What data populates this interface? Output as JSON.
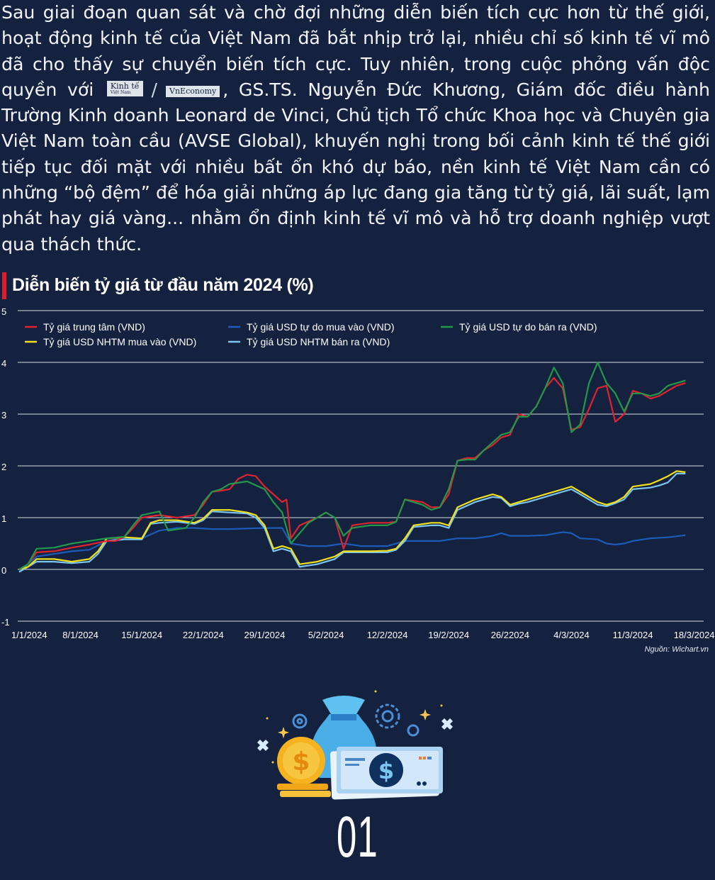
{
  "intro": {
    "part1": "Sau giai đoạn quan sát và chờ đợi những diễn biến tích cực hơn từ thế giới, hoạt động kinh tế của Việt Nam đã bắt nhịp trở lại, nhiều chỉ số kinh tế vĩ mô đã cho thấy sự chuyển biến tích cực. Tuy nhiên, trong cuộc phỏng vấn độc quyền với",
    "badge1_main": "Kinh tế",
    "badge1_sub": "Việt Nam",
    "separator": "/",
    "badge2": "VnEconomy",
    "part2": ", GS.TS. Nguyễn Đức Khương, Giám đốc điều hành Trường Kinh doanh Leonard de Vinci, Chủ tịch Tổ chức Khoa học và Chuyên gia Việt Nam toàn cầu (AVSE Global), khuyến nghị trong bối cảnh kinh tế thế giới tiếp tục đối mặt với nhiều bất ổn khó dự báo, nền kinh tế Việt Nam cần có những “bộ đệm” để hóa giải những áp lực đang gia tăng từ tỷ giá, lãi suất, lạm phát hay giá vàng... nhằm ổn định kinh tế vĩ mô và hỗ trợ doanh nghiệp vượt qua thách thức."
  },
  "source": "Nguồn: Wichart.vn",
  "section_number": "01",
  "chart_data": {
    "type": "line",
    "title": "Diễn biến tỷ giá từ đầu năm 2024 (%)",
    "xlabel": "",
    "ylabel": "",
    "ylim": [
      -1,
      5
    ],
    "yticks": [
      "5",
      "4",
      "3",
      "2",
      "1",
      "0",
      "-1"
    ],
    "grid": true,
    "legend_position": "top-left",
    "x_tick_labels": [
      "1/1/2024",
      "8/1/2024",
      "15/1/2024",
      "22/1/2024",
      "29/1/2024",
      "5/2/2024",
      "12/2/2024",
      "19/2/2024",
      "26/22024",
      "4/3/2024",
      "11/3/2024",
      "18/3/2024"
    ],
    "x_days": [
      0,
      7,
      14,
      21,
      28,
      35,
      42,
      49,
      56,
      63,
      70,
      77
    ],
    "x_range_days": [
      0,
      78
    ],
    "series": [
      {
        "name": "Tỷ giá trung tâm (VND)",
        "color": "#e0242f",
        "points": [
          [
            0,
            0
          ],
          [
            1,
            0.1
          ],
          [
            2,
            0.33
          ],
          [
            4,
            0.35
          ],
          [
            6,
            0.42
          ],
          [
            8,
            0.48
          ],
          [
            10,
            0.55
          ],
          [
            11,
            0.55
          ],
          [
            12,
            0.63
          ],
          [
            13,
            0.8
          ],
          [
            14,
            1.0
          ],
          [
            16,
            1.05
          ],
          [
            18,
            1.0
          ],
          [
            20,
            1.05
          ],
          [
            21,
            1.25
          ],
          [
            22,
            1.5
          ],
          [
            23,
            1.52
          ],
          [
            24,
            1.55
          ],
          [
            25,
            1.75
          ],
          [
            26,
            1.83
          ],
          [
            27,
            1.8
          ],
          [
            28,
            1.6
          ],
          [
            29,
            1.45
          ],
          [
            30,
            1.3
          ],
          [
            30.5,
            1.35
          ],
          [
            31,
            0.6
          ],
          [
            32,
            0.85
          ],
          [
            34,
            1.0
          ],
          [
            35,
            1.1
          ],
          [
            36,
            1.0
          ],
          [
            37,
            0.4
          ],
          [
            38,
            0.85
          ],
          [
            40,
            0.9
          ],
          [
            42,
            0.9
          ],
          [
            43,
            0.92
          ],
          [
            44,
            1.35
          ],
          [
            46,
            1.3
          ],
          [
            47,
            1.2
          ],
          [
            48,
            1.2
          ],
          [
            49,
            1.45
          ],
          [
            50,
            2.1
          ],
          [
            51,
            2.15
          ],
          [
            52,
            2.15
          ],
          [
            53,
            2.3
          ],
          [
            54,
            2.4
          ],
          [
            55,
            2.55
          ],
          [
            56,
            2.6
          ],
          [
            57,
            3.0
          ],
          [
            58,
            2.95
          ],
          [
            59,
            3.15
          ],
          [
            60,
            3.5
          ],
          [
            61,
            3.7
          ],
          [
            62,
            3.5
          ],
          [
            63,
            2.7
          ],
          [
            64,
            2.75
          ],
          [
            65,
            3.1
          ],
          [
            66,
            3.5
          ],
          [
            67,
            3.55
          ],
          [
            68,
            2.85
          ],
          [
            69,
            3.0
          ],
          [
            70,
            3.45
          ],
          [
            71,
            3.4
          ],
          [
            72,
            3.3
          ],
          [
            73,
            3.35
          ],
          [
            74,
            3.45
          ],
          [
            75,
            3.55
          ],
          [
            76,
            3.6
          ]
        ]
      },
      {
        "name": "Tỷ giá USD tự do mua vào (VND)",
        "color": "#1c5cb8",
        "points": [
          [
            0,
            -0.05
          ],
          [
            2,
            0.25
          ],
          [
            4,
            0.3
          ],
          [
            6,
            0.35
          ],
          [
            8,
            0.38
          ],
          [
            10,
            0.55
          ],
          [
            12,
            0.6
          ],
          [
            14,
            0.6
          ],
          [
            16,
            0.75
          ],
          [
            18,
            0.8
          ],
          [
            20,
            0.8
          ],
          [
            22,
            0.78
          ],
          [
            24,
            0.78
          ],
          [
            26,
            0.79
          ],
          [
            28,
            0.8
          ],
          [
            30,
            0.8
          ],
          [
            31,
            0.5
          ],
          [
            33,
            0.45
          ],
          [
            35,
            0.45
          ],
          [
            37,
            0.5
          ],
          [
            39,
            0.45
          ],
          [
            42,
            0.45
          ],
          [
            44,
            0.55
          ],
          [
            46,
            0.55
          ],
          [
            48,
            0.55
          ],
          [
            50,
            0.6
          ],
          [
            52,
            0.6
          ],
          [
            54,
            0.65
          ],
          [
            55,
            0.7
          ],
          [
            56,
            0.65
          ],
          [
            58,
            0.65
          ],
          [
            60,
            0.66
          ],
          [
            62,
            0.72
          ],
          [
            63,
            0.7
          ],
          [
            64,
            0.6
          ],
          [
            66,
            0.58
          ],
          [
            67,
            0.5
          ],
          [
            68,
            0.48
          ],
          [
            69,
            0.5
          ],
          [
            70,
            0.55
          ],
          [
            72,
            0.6
          ],
          [
            74,
            0.62
          ],
          [
            76,
            0.66
          ]
        ]
      },
      {
        "name": "Tỷ giá USD tự do bán ra (VND)",
        "color": "#22994a",
        "points": [
          [
            0,
            0
          ],
          [
            1,
            0.1
          ],
          [
            2,
            0.4
          ],
          [
            4,
            0.42
          ],
          [
            6,
            0.5
          ],
          [
            8,
            0.55
          ],
          [
            10,
            0.6
          ],
          [
            12,
            0.63
          ],
          [
            13,
            0.85
          ],
          [
            14,
            1.05
          ],
          [
            16,
            1.12
          ],
          [
            17,
            0.75
          ],
          [
            19,
            0.8
          ],
          [
            20,
            1.0
          ],
          [
            21,
            1.3
          ],
          [
            22,
            1.5
          ],
          [
            23,
            1.55
          ],
          [
            24,
            1.65
          ],
          [
            26,
            1.7
          ],
          [
            28,
            1.55
          ],
          [
            29,
            1.3
          ],
          [
            30,
            1.1
          ],
          [
            31,
            0.5
          ],
          [
            33,
            0.9
          ],
          [
            35,
            1.1
          ],
          [
            36,
            1.0
          ],
          [
            37,
            0.65
          ],
          [
            38,
            0.8
          ],
          [
            40,
            0.85
          ],
          [
            42,
            0.85
          ],
          [
            43,
            0.92
          ],
          [
            44,
            1.35
          ],
          [
            46,
            1.25
          ],
          [
            47,
            1.15
          ],
          [
            48,
            1.2
          ],
          [
            49,
            1.55
          ],
          [
            50,
            2.1
          ],
          [
            51,
            2.12
          ],
          [
            52,
            2.12
          ],
          [
            53,
            2.3
          ],
          [
            54,
            2.45
          ],
          [
            55,
            2.6
          ],
          [
            56,
            2.65
          ],
          [
            57,
            2.95
          ],
          [
            58,
            2.95
          ],
          [
            59,
            3.15
          ],
          [
            60,
            3.5
          ],
          [
            61,
            3.9
          ],
          [
            62,
            3.6
          ],
          [
            63,
            2.65
          ],
          [
            64,
            2.8
          ],
          [
            65,
            3.6
          ],
          [
            66,
            4.0
          ],
          [
            67,
            3.6
          ],
          [
            68,
            3.4
          ],
          [
            69,
            3.05
          ],
          [
            70,
            3.4
          ],
          [
            71,
            3.4
          ],
          [
            72,
            3.35
          ],
          [
            73,
            3.4
          ],
          [
            74,
            3.55
          ],
          [
            75,
            3.6
          ],
          [
            76,
            3.65
          ]
        ]
      },
      {
        "name": "Tỷ giá USD NHTM mua vào (VND)",
        "color": "#f2e11a",
        "points": [
          [
            0,
            0
          ],
          [
            1,
            0.05
          ],
          [
            2,
            0.2
          ],
          [
            4,
            0.2
          ],
          [
            6,
            0.15
          ],
          [
            8,
            0.2
          ],
          [
            9,
            0.35
          ],
          [
            10,
            0.6
          ],
          [
            12,
            0.62
          ],
          [
            14,
            0.6
          ],
          [
            15,
            0.9
          ],
          [
            16,
            0.95
          ],
          [
            18,
            0.95
          ],
          [
            20,
            0.9
          ],
          [
            21,
            0.98
          ],
          [
            22,
            1.15
          ],
          [
            24,
            1.15
          ],
          [
            26,
            1.1
          ],
          [
            27,
            1.05
          ],
          [
            28,
            0.85
          ],
          [
            29,
            0.4
          ],
          [
            30,
            0.45
          ],
          [
            31,
            0.4
          ],
          [
            32,
            0.1
          ],
          [
            34,
            0.15
          ],
          [
            35,
            0.2
          ],
          [
            36,
            0.25
          ],
          [
            37,
            0.35
          ],
          [
            40,
            0.35
          ],
          [
            42,
            0.36
          ],
          [
            43,
            0.4
          ],
          [
            44,
            0.6
          ],
          [
            45,
            0.85
          ],
          [
            47,
            0.9
          ],
          [
            48,
            0.9
          ],
          [
            49,
            0.85
          ],
          [
            50,
            1.2
          ],
          [
            52,
            1.35
          ],
          [
            54,
            1.45
          ],
          [
            55,
            1.4
          ],
          [
            56,
            1.25
          ],
          [
            57,
            1.3
          ],
          [
            58,
            1.35
          ],
          [
            60,
            1.45
          ],
          [
            62,
            1.55
          ],
          [
            63,
            1.6
          ],
          [
            64,
            1.5
          ],
          [
            65,
            1.4
          ],
          [
            66,
            1.3
          ],
          [
            67,
            1.25
          ],
          [
            68,
            1.3
          ],
          [
            69,
            1.4
          ],
          [
            70,
            1.6
          ],
          [
            72,
            1.65
          ],
          [
            73,
            1.72
          ],
          [
            74,
            1.8
          ],
          [
            75,
            1.9
          ],
          [
            76,
            1.88
          ]
        ]
      },
      {
        "name": "Tỷ giá USD NHTM bán ra (VND)",
        "color": "#7ac6ef",
        "points": [
          [
            0,
            -0.05
          ],
          [
            1,
            0.05
          ],
          [
            2,
            0.15
          ],
          [
            4,
            0.15
          ],
          [
            6,
            0.12
          ],
          [
            8,
            0.15
          ],
          [
            9,
            0.3
          ],
          [
            10,
            0.55
          ],
          [
            12,
            0.58
          ],
          [
            14,
            0.58
          ],
          [
            15,
            0.88
          ],
          [
            16,
            0.9
          ],
          [
            18,
            0.92
          ],
          [
            20,
            0.88
          ],
          [
            21,
            0.95
          ],
          [
            22,
            1.12
          ],
          [
            24,
            1.1
          ],
          [
            26,
            1.08
          ],
          [
            27,
            1.0
          ],
          [
            28,
            0.8
          ],
          [
            29,
            0.35
          ],
          [
            30,
            0.4
          ],
          [
            31,
            0.35
          ],
          [
            32,
            0.05
          ],
          [
            34,
            0.1
          ],
          [
            35,
            0.15
          ],
          [
            36,
            0.2
          ],
          [
            37,
            0.33
          ],
          [
            40,
            0.33
          ],
          [
            42,
            0.33
          ],
          [
            43,
            0.38
          ],
          [
            44,
            0.55
          ],
          [
            45,
            0.82
          ],
          [
            47,
            0.85
          ],
          [
            48,
            0.85
          ],
          [
            49,
            0.8
          ],
          [
            50,
            1.15
          ],
          [
            52,
            1.3
          ],
          [
            54,
            1.4
          ],
          [
            55,
            1.38
          ],
          [
            56,
            1.22
          ],
          [
            57,
            1.27
          ],
          [
            58,
            1.3
          ],
          [
            60,
            1.4
          ],
          [
            62,
            1.5
          ],
          [
            63,
            1.55
          ],
          [
            64,
            1.45
          ],
          [
            65,
            1.35
          ],
          [
            66,
            1.25
          ],
          [
            67,
            1.22
          ],
          [
            68,
            1.28
          ],
          [
            69,
            1.35
          ],
          [
            70,
            1.55
          ],
          [
            72,
            1.58
          ],
          [
            73,
            1.62
          ],
          [
            74,
            1.68
          ],
          [
            75,
            1.85
          ],
          [
            76,
            1.85
          ]
        ]
      }
    ]
  }
}
